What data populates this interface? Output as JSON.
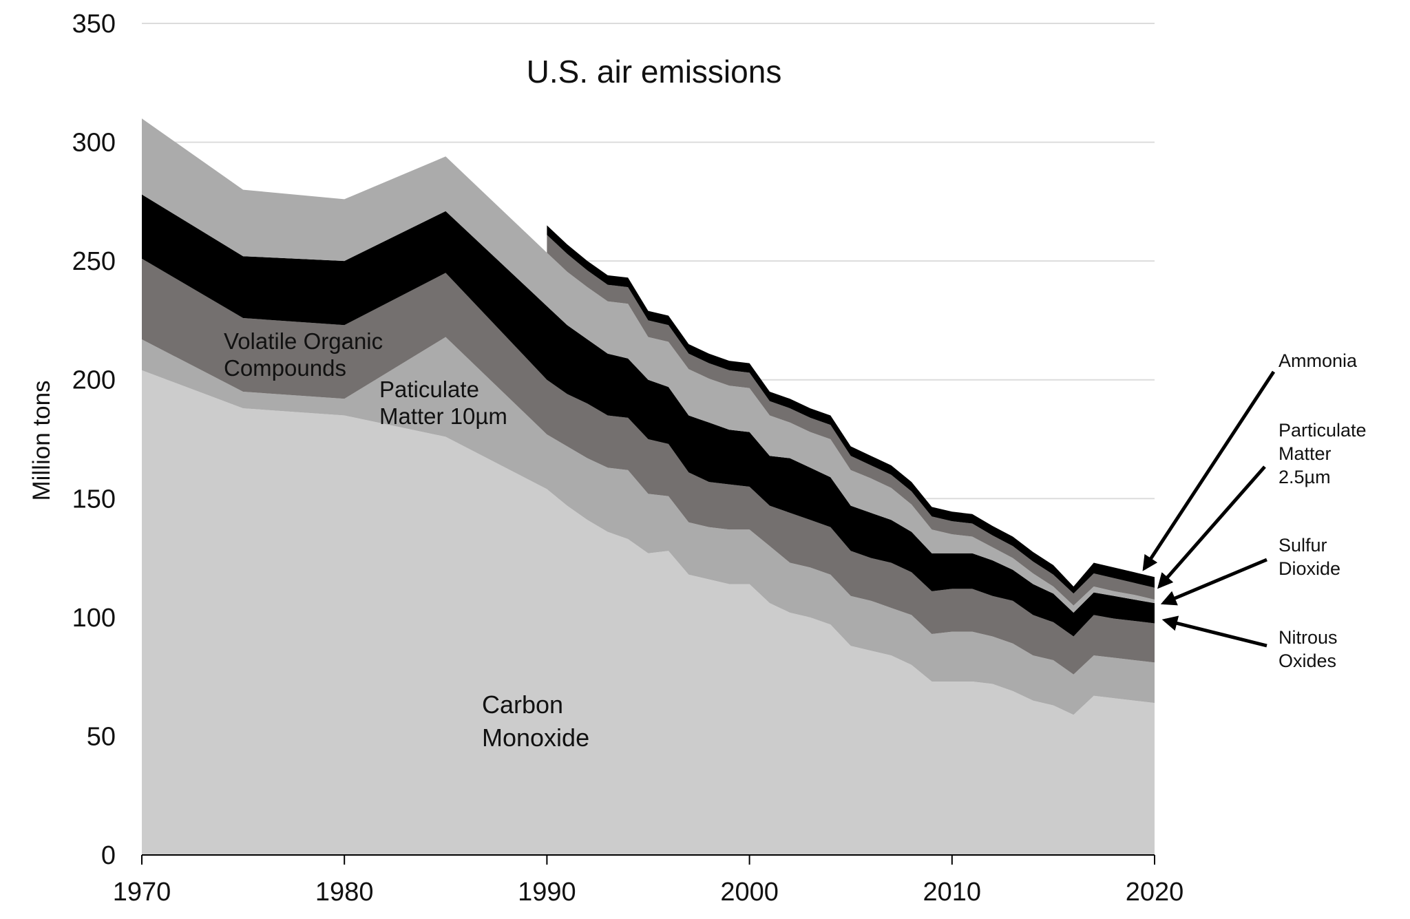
{
  "chart_data": {
    "type": "area",
    "stacked": true,
    "title": "U.S. air emissions",
    "xlabel": "",
    "ylabel": "Million tons",
    "xlim": [
      1970,
      2020
    ],
    "ylim": [
      0,
      350
    ],
    "x_ticks": [
      "1970",
      "1980",
      "1990",
      "2000",
      "2010",
      "2020"
    ],
    "y_ticks": [
      "0",
      "50",
      "100",
      "150",
      "200",
      "250",
      "300",
      "350"
    ],
    "grid": true,
    "x": [
      1970,
      1975,
      1980,
      1985,
      1990,
      1991,
      1992,
      1993,
      1994,
      1995,
      1996,
      1997,
      1998,
      1999,
      2000,
      2001,
      2002,
      2003,
      2004,
      2005,
      2006,
      2007,
      2008,
      2009,
      2010,
      2011,
      2012,
      2013,
      2014,
      2015,
      2016,
      2017,
      2018,
      2019,
      2020
    ],
    "series": [
      {
        "name": "Carbon Monoxide",
        "label_lines": [
          "Carbon",
          "Monoxide"
        ],
        "color": "#cccccc",
        "values": [
          204,
          188,
          185,
          176,
          154,
          147,
          141,
          136,
          133,
          127,
          128,
          118,
          116,
          114,
          114,
          106,
          102,
          100,
          97,
          88,
          86,
          84,
          80,
          73,
          73,
          73,
          72,
          69,
          65,
          63,
          59,
          67,
          66,
          65,
          64
        ]
      },
      {
        "name": "Paticulate Matter 10µm",
        "label_lines": [
          "Paticulate",
          "Matter 10µm"
        ],
        "color": "#ababab",
        "values": [
          13,
          7,
          7,
          42,
          23,
          25,
          26,
          27,
          29,
          25,
          23,
          22,
          22,
          23,
          23,
          24,
          21,
          21,
          21,
          21,
          21,
          20,
          21,
          20,
          21,
          21,
          20,
          20,
          19,
          19,
          17,
          17,
          17,
          17,
          17
        ]
      },
      {
        "name": "Volatile Organic Compounds",
        "label_lines": [
          "Volatile Organic",
          "Compounds"
        ],
        "color": "#74706f",
        "values": [
          34,
          31,
          31,
          27,
          23,
          22,
          23,
          22,
          22,
          23,
          22,
          21,
          19,
          19,
          18,
          17,
          21,
          20,
          20,
          19,
          18,
          19,
          18,
          18,
          18,
          18,
          17,
          18,
          17,
          16,
          16,
          17,
          16.5,
          16.5,
          16.5
        ]
      },
      {
        "name": "Nitrous Oxides",
        "label_lines": [
          "Nitrous",
          "Oxides"
        ],
        "color": "#000000",
        "values": [
          27,
          26,
          27,
          26,
          31,
          29,
          27,
          26,
          25,
          25,
          24,
          24,
          25,
          23,
          23,
          21,
          23,
          22,
          21,
          19,
          19,
          18,
          17,
          16,
          15,
          15,
          15,
          13,
          13,
          12,
          10,
          9.5,
          9.5,
          9,
          8.5
        ]
      },
      {
        "name": "Sulfur Dioxide",
        "label_lines": [
          "Sulfur",
          "Dioxide"
        ],
        "color": "#ababab",
        "values": [
          32,
          28,
          26,
          23,
          22.5,
          22.5,
          22,
          22,
          23,
          18,
          19,
          19.5,
          18.5,
          18.5,
          18.5,
          17,
          15,
          15,
          16,
          15,
          14.5,
          13.5,
          11.5,
          10,
          8,
          7,
          5.5,
          5,
          4.5,
          3,
          3,
          2.5,
          2,
          2,
          1.5
        ]
      },
      {
        "name": "Particulate Matter 2.5µm",
        "label_lines": [
          "Particulate",
          "Matter",
          "2.5µm"
        ],
        "color": "#74706f",
        "values": [
          null,
          null,
          null,
          null,
          7.5,
          7.5,
          7,
          7,
          7,
          7,
          7,
          6.5,
          6.5,
          6.5,
          6.5,
          6,
          6,
          6,
          6,
          6,
          5.5,
          5.5,
          5.5,
          5.5,
          5.5,
          5.5,
          5,
          5,
          5,
          5,
          5,
          5.5,
          5.5,
          5,
          5
        ]
      },
      {
        "name": "Ammonia",
        "label_lines": [
          "Ammonia"
        ],
        "color": "#000000",
        "values": [
          null,
          null,
          null,
          null,
          4,
          4,
          4,
          4,
          4,
          4,
          4,
          4,
          4,
          4,
          4,
          4,
          4,
          4,
          4,
          4,
          4,
          4,
          4,
          4,
          4,
          4,
          4,
          4,
          4,
          4,
          3,
          4.5,
          4.5,
          4.5,
          4.5
        ]
      }
    ],
    "annotations": "inline labels for lower layers; arrow callouts on the right for thin layers"
  }
}
